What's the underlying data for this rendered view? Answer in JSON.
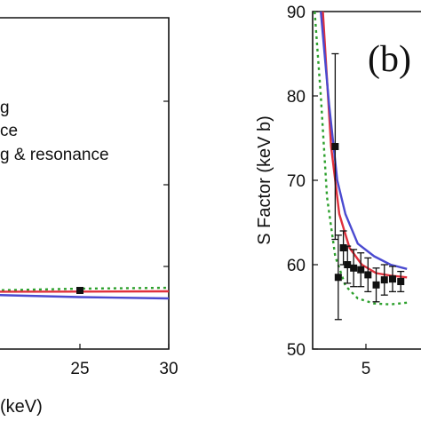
{
  "chart_data": [
    {
      "type": "line",
      "panel": "a",
      "xlabel": "(keV)",
      "ylabel": "",
      "xlim": [
        15,
        30
      ],
      "x_ticks": [
        25,
        30
      ],
      "legend": {
        "placement": "upper-right",
        "entries": [
          "g",
          "ce",
          "g & resonance"
        ]
      },
      "series": [
        {
          "color": "#2ca02c",
          "style": "dotted",
          "x": [
            15,
            20,
            25,
            30
          ],
          "y": [
            0.0,
            0.6,
            1.0,
            1.2
          ]
        },
        {
          "color": "#e0303c",
          "style": "solid",
          "x": [
            15,
            20,
            25,
            30
          ],
          "y": [
            0.0,
            0.3,
            0.35,
            0.4
          ]
        },
        {
          "color": "#4a4ad0",
          "style": "solid",
          "x": [
            15,
            20,
            25,
            30
          ],
          "y": [
            0.0,
            -0.4,
            -0.9,
            -1.2
          ]
        }
      ],
      "data_points": [
        {
          "x": 25,
          "y": 0.6,
          "err": 0.6
        }
      ]
    },
    {
      "type": "line",
      "panel": "b",
      "panel_label": "(b)",
      "ylabel": "S Factor (keV b)",
      "xlabel": "",
      "ylim": [
        50,
        90
      ],
      "y_ticks": [
        50,
        60,
        70,
        80,
        90
      ],
      "x_ticks": [
        5
      ],
      "series": [
        {
          "color": "#e0303c",
          "style": "solid",
          "x": [
            2.9,
            3.3,
            3.7,
            4.2,
            4.8,
            5.5,
            6.2,
            7.0
          ],
          "y": [
            90,
            74,
            66,
            62,
            60,
            59,
            58.7,
            58.5
          ]
        },
        {
          "color": "#4a4ad0",
          "style": "solid",
          "x": [
            2.8,
            3.2,
            3.6,
            4.0,
            4.6,
            5.4,
            6.2,
            7.0
          ],
          "y": [
            90,
            79,
            70,
            66,
            62.5,
            61,
            60,
            59.5
          ]
        },
        {
          "color": "#2ca02c",
          "style": "dotted",
          "x": [
            2.5,
            2.8,
            3.1,
            3.5,
            4.0,
            4.6,
            5.4,
            6.2,
            7.0
          ],
          "y": [
            90,
            80,
            68,
            61,
            57.5,
            56,
            55.4,
            55.3,
            55.5
          ]
        }
      ],
      "data_points": [
        {
          "x": 3.5,
          "y": 74,
          "err": 11
        },
        {
          "x": 3.65,
          "y": 58.5,
          "err": 5
        },
        {
          "x": 3.9,
          "y": 62,
          "err": 2
        },
        {
          "x": 4.1,
          "y": 60,
          "err": 2.2
        },
        {
          "x": 4.4,
          "y": 59.6,
          "err": 2.2
        },
        {
          "x": 4.75,
          "y": 59.4,
          "err": 2
        },
        {
          "x": 5.1,
          "y": 58.8,
          "err": 2
        },
        {
          "x": 5.5,
          "y": 57.6,
          "err": 2
        },
        {
          "x": 5.9,
          "y": 58.2,
          "err": 1.8
        },
        {
          "x": 6.3,
          "y": 58.3,
          "err": 1.5
        },
        {
          "x": 6.7,
          "y": 58.0,
          "err": 1.2
        }
      ]
    }
  ]
}
